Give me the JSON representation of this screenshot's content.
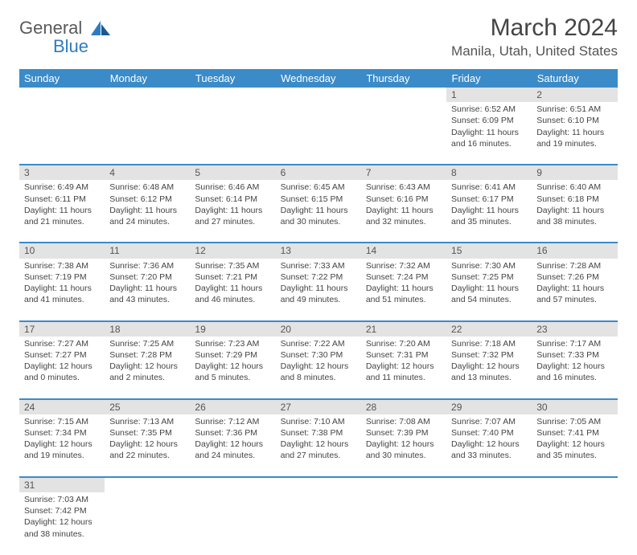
{
  "logo": {
    "text1": "General",
    "text2": "Blue"
  },
  "title": "March 2024",
  "location": "Manila, Utah, United States",
  "colors": {
    "header_bg": "#3b8bc9",
    "header_text": "#ffffff",
    "daynum_bg": "#e3e3e3",
    "border": "#3b8bc9",
    "logo_gray": "#5a5a5a",
    "logo_blue": "#2e7cc0"
  },
  "weekdays": [
    "Sunday",
    "Monday",
    "Tuesday",
    "Wednesday",
    "Thursday",
    "Friday",
    "Saturday"
  ],
  "weeks": [
    [
      null,
      null,
      null,
      null,
      null,
      {
        "n": "1",
        "sr": "Sunrise: 6:52 AM",
        "ss": "Sunset: 6:09 PM",
        "dl": "Daylight: 11 hours and 16 minutes."
      },
      {
        "n": "2",
        "sr": "Sunrise: 6:51 AM",
        "ss": "Sunset: 6:10 PM",
        "dl": "Daylight: 11 hours and 19 minutes."
      }
    ],
    [
      {
        "n": "3",
        "sr": "Sunrise: 6:49 AM",
        "ss": "Sunset: 6:11 PM",
        "dl": "Daylight: 11 hours and 21 minutes."
      },
      {
        "n": "4",
        "sr": "Sunrise: 6:48 AM",
        "ss": "Sunset: 6:12 PM",
        "dl": "Daylight: 11 hours and 24 minutes."
      },
      {
        "n": "5",
        "sr": "Sunrise: 6:46 AM",
        "ss": "Sunset: 6:14 PM",
        "dl": "Daylight: 11 hours and 27 minutes."
      },
      {
        "n": "6",
        "sr": "Sunrise: 6:45 AM",
        "ss": "Sunset: 6:15 PM",
        "dl": "Daylight: 11 hours and 30 minutes."
      },
      {
        "n": "7",
        "sr": "Sunrise: 6:43 AM",
        "ss": "Sunset: 6:16 PM",
        "dl": "Daylight: 11 hours and 32 minutes."
      },
      {
        "n": "8",
        "sr": "Sunrise: 6:41 AM",
        "ss": "Sunset: 6:17 PM",
        "dl": "Daylight: 11 hours and 35 minutes."
      },
      {
        "n": "9",
        "sr": "Sunrise: 6:40 AM",
        "ss": "Sunset: 6:18 PM",
        "dl": "Daylight: 11 hours and 38 minutes."
      }
    ],
    [
      {
        "n": "10",
        "sr": "Sunrise: 7:38 AM",
        "ss": "Sunset: 7:19 PM",
        "dl": "Daylight: 11 hours and 41 minutes."
      },
      {
        "n": "11",
        "sr": "Sunrise: 7:36 AM",
        "ss": "Sunset: 7:20 PM",
        "dl": "Daylight: 11 hours and 43 minutes."
      },
      {
        "n": "12",
        "sr": "Sunrise: 7:35 AM",
        "ss": "Sunset: 7:21 PM",
        "dl": "Daylight: 11 hours and 46 minutes."
      },
      {
        "n": "13",
        "sr": "Sunrise: 7:33 AM",
        "ss": "Sunset: 7:22 PM",
        "dl": "Daylight: 11 hours and 49 minutes."
      },
      {
        "n": "14",
        "sr": "Sunrise: 7:32 AM",
        "ss": "Sunset: 7:24 PM",
        "dl": "Daylight: 11 hours and 51 minutes."
      },
      {
        "n": "15",
        "sr": "Sunrise: 7:30 AM",
        "ss": "Sunset: 7:25 PM",
        "dl": "Daylight: 11 hours and 54 minutes."
      },
      {
        "n": "16",
        "sr": "Sunrise: 7:28 AM",
        "ss": "Sunset: 7:26 PM",
        "dl": "Daylight: 11 hours and 57 minutes."
      }
    ],
    [
      {
        "n": "17",
        "sr": "Sunrise: 7:27 AM",
        "ss": "Sunset: 7:27 PM",
        "dl": "Daylight: 12 hours and 0 minutes."
      },
      {
        "n": "18",
        "sr": "Sunrise: 7:25 AM",
        "ss": "Sunset: 7:28 PM",
        "dl": "Daylight: 12 hours and 2 minutes."
      },
      {
        "n": "19",
        "sr": "Sunrise: 7:23 AM",
        "ss": "Sunset: 7:29 PM",
        "dl": "Daylight: 12 hours and 5 minutes."
      },
      {
        "n": "20",
        "sr": "Sunrise: 7:22 AM",
        "ss": "Sunset: 7:30 PM",
        "dl": "Daylight: 12 hours and 8 minutes."
      },
      {
        "n": "21",
        "sr": "Sunrise: 7:20 AM",
        "ss": "Sunset: 7:31 PM",
        "dl": "Daylight: 12 hours and 11 minutes."
      },
      {
        "n": "22",
        "sr": "Sunrise: 7:18 AM",
        "ss": "Sunset: 7:32 PM",
        "dl": "Daylight: 12 hours and 13 minutes."
      },
      {
        "n": "23",
        "sr": "Sunrise: 7:17 AM",
        "ss": "Sunset: 7:33 PM",
        "dl": "Daylight: 12 hours and 16 minutes."
      }
    ],
    [
      {
        "n": "24",
        "sr": "Sunrise: 7:15 AM",
        "ss": "Sunset: 7:34 PM",
        "dl": "Daylight: 12 hours and 19 minutes."
      },
      {
        "n": "25",
        "sr": "Sunrise: 7:13 AM",
        "ss": "Sunset: 7:35 PM",
        "dl": "Daylight: 12 hours and 22 minutes."
      },
      {
        "n": "26",
        "sr": "Sunrise: 7:12 AM",
        "ss": "Sunset: 7:36 PM",
        "dl": "Daylight: 12 hours and 24 minutes."
      },
      {
        "n": "27",
        "sr": "Sunrise: 7:10 AM",
        "ss": "Sunset: 7:38 PM",
        "dl": "Daylight: 12 hours and 27 minutes."
      },
      {
        "n": "28",
        "sr": "Sunrise: 7:08 AM",
        "ss": "Sunset: 7:39 PM",
        "dl": "Daylight: 12 hours and 30 minutes."
      },
      {
        "n": "29",
        "sr": "Sunrise: 7:07 AM",
        "ss": "Sunset: 7:40 PM",
        "dl": "Daylight: 12 hours and 33 minutes."
      },
      {
        "n": "30",
        "sr": "Sunrise: 7:05 AM",
        "ss": "Sunset: 7:41 PM",
        "dl": "Daylight: 12 hours and 35 minutes."
      }
    ],
    [
      {
        "n": "31",
        "sr": "Sunrise: 7:03 AM",
        "ss": "Sunset: 7:42 PM",
        "dl": "Daylight: 12 hours and 38 minutes."
      },
      null,
      null,
      null,
      null,
      null,
      null
    ]
  ]
}
